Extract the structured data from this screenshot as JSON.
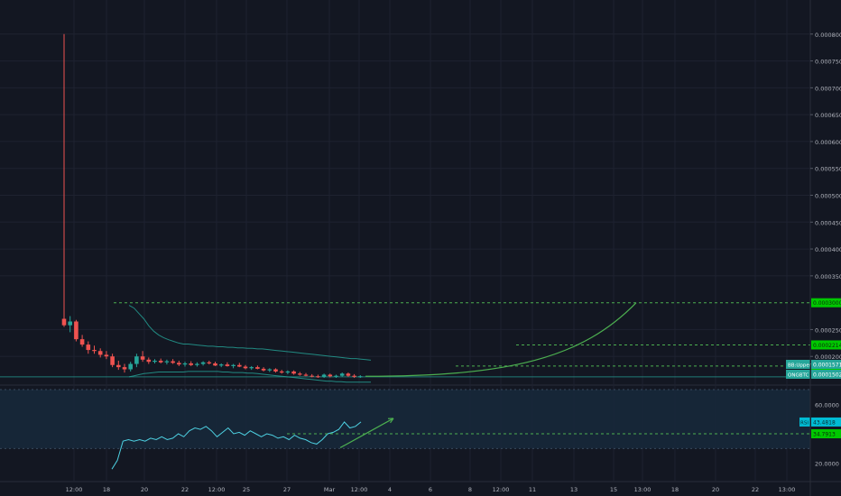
{
  "colors": {
    "background": "#131722",
    "grid": "#1e2230",
    "candle_up": "#26a69a",
    "candle_down": "#ef5350",
    "bollinger": "#26a69a",
    "projection": "#4caf50",
    "level_line": "#4caf50",
    "level_label_bg": "#00c800",
    "tag_bg": "#26a69a",
    "rsi_line": "#4dd0e1",
    "rsi_band": "#17283a",
    "rsi_tag_bg": "#00bcd4",
    "axis_text": "#b2b5be"
  },
  "chart_data": [
    {
      "type": "candlestick",
      "title": "",
      "ylim": [
        0.00015,
        0.00085
      ],
      "y_ticks": [
        "0.00080000",
        "0.00075000",
        "0.00070000",
        "0.00065000",
        "0.00060000",
        "0.00055000",
        "0.00050000",
        "0.00045000",
        "0.00040000",
        "0.00035000",
        "0.00025000",
        "0.00020000"
      ],
      "y_tick_values": [
        0.0008,
        0.00075,
        0.0007,
        0.00065,
        0.0006,
        0.00055,
        0.0005,
        0.00045,
        0.0004,
        0.00035,
        0.00025,
        0.0002
      ],
      "x_ticks": [
        "12:00",
        "18",
        "20",
        "22",
        "12:00",
        "25",
        "27",
        "Mar",
        "12:00",
        "4",
        "6",
        "8",
        "12:00",
        "11",
        "13",
        "15",
        "13:00",
        "18",
        "20",
        "22",
        "13:00"
      ],
      "candles": [
        {
          "o": 0.00027,
          "h": 0.0008,
          "l": 0.000255,
          "c": 0.000258
        },
        {
          "o": 0.000258,
          "h": 0.000275,
          "l": 0.000245,
          "c": 0.000265
        },
        {
          "o": 0.000265,
          "h": 0.000268,
          "l": 0.000228,
          "c": 0.000232
        },
        {
          "o": 0.000232,
          "h": 0.00024,
          "l": 0.000218,
          "c": 0.000222
        },
        {
          "o": 0.000222,
          "h": 0.000228,
          "l": 0.000205,
          "c": 0.000212
        },
        {
          "o": 0.000212,
          "h": 0.00022,
          "l": 0.000205,
          "c": 0.00021
        },
        {
          "o": 0.00021,
          "h": 0.000215,
          "l": 0.000198,
          "c": 0.000203
        },
        {
          "o": 0.000203,
          "h": 0.00021,
          "l": 0.000195,
          "c": 0.0002
        },
        {
          "o": 0.0002,
          "h": 0.000205,
          "l": 0.00018,
          "c": 0.000184
        },
        {
          "o": 0.000184,
          "h": 0.000192,
          "l": 0.000175,
          "c": 0.00018
        },
        {
          "o": 0.00018,
          "h": 0.000186,
          "l": 0.00017,
          "c": 0.000176
        },
        {
          "o": 0.000176,
          "h": 0.00019,
          "l": 0.000172,
          "c": 0.000186
        },
        {
          "o": 0.000186,
          "h": 0.000205,
          "l": 0.00018,
          "c": 0.0002
        },
        {
          "o": 0.0002,
          "h": 0.00021,
          "l": 0.00019,
          "c": 0.000194
        },
        {
          "o": 0.000194,
          "h": 0.000198,
          "l": 0.000186,
          "c": 0.00019
        },
        {
          "o": 0.00019,
          "h": 0.000195,
          "l": 0.000187,
          "c": 0.000192
        },
        {
          "o": 0.000192,
          "h": 0.000196,
          "l": 0.000187,
          "c": 0.000189
        },
        {
          "o": 0.000189,
          "h": 0.000194,
          "l": 0.000185,
          "c": 0.000191
        },
        {
          "o": 0.000191,
          "h": 0.000195,
          "l": 0.000186,
          "c": 0.000188
        },
        {
          "o": 0.000188,
          "h": 0.000192,
          "l": 0.000182,
          "c": 0.000185
        },
        {
          "o": 0.000185,
          "h": 0.00019,
          "l": 0.000181,
          "c": 0.000187
        },
        {
          "o": 0.000187,
          "h": 0.000191,
          "l": 0.000182,
          "c": 0.000184
        },
        {
          "o": 0.000184,
          "h": 0.000189,
          "l": 0.000181,
          "c": 0.000186
        },
        {
          "o": 0.000186,
          "h": 0.000191,
          "l": 0.000183,
          "c": 0.000189
        },
        {
          "o": 0.000189,
          "h": 0.000192,
          "l": 0.000185,
          "c": 0.000187
        },
        {
          "o": 0.000187,
          "h": 0.00019,
          "l": 0.000182,
          "c": 0.000183
        },
        {
          "o": 0.000183,
          "h": 0.000187,
          "l": 0.00018,
          "c": 0.000185
        },
        {
          "o": 0.000185,
          "h": 0.000189,
          "l": 0.000181,
          "c": 0.000182
        },
        {
          "o": 0.000182,
          "h": 0.000186,
          "l": 0.000178,
          "c": 0.000184
        },
        {
          "o": 0.000184,
          "h": 0.000188,
          "l": 0.00018,
          "c": 0.000181
        },
        {
          "o": 0.000181,
          "h": 0.000184,
          "l": 0.000176,
          "c": 0.000178
        },
        {
          "o": 0.000178,
          "h": 0.000182,
          "l": 0.000175,
          "c": 0.00018
        },
        {
          "o": 0.00018,
          "h": 0.000183,
          "l": 0.000176,
          "c": 0.000177
        },
        {
          "o": 0.000177,
          "h": 0.00018,
          "l": 0.000172,
          "c": 0.000174
        },
        {
          "o": 0.000174,
          "h": 0.000178,
          "l": 0.000171,
          "c": 0.000176
        },
        {
          "o": 0.000176,
          "h": 0.000178,
          "l": 0.00017,
          "c": 0.000172
        },
        {
          "o": 0.000172,
          "h": 0.000175,
          "l": 0.000168,
          "c": 0.00017
        },
        {
          "o": 0.00017,
          "h": 0.000174,
          "l": 0.000167,
          "c": 0.000172
        },
        {
          "o": 0.000172,
          "h": 0.000174,
          "l": 0.000166,
          "c": 0.000168
        },
        {
          "o": 0.000168,
          "h": 0.000171,
          "l": 0.000164,
          "c": 0.000166
        },
        {
          "o": 0.000166,
          "h": 0.000169,
          "l": 0.000163,
          "c": 0.000164
        },
        {
          "o": 0.000164,
          "h": 0.000167,
          "l": 0.000161,
          "c": 0.000163
        },
        {
          "o": 0.000163,
          "h": 0.000166,
          "l": 0.00016,
          "c": 0.000162
        },
        {
          "o": 0.000162,
          "h": 0.000168,
          "l": 0.00016,
          "c": 0.000166
        },
        {
          "o": 0.000166,
          "h": 0.000168,
          "l": 0.000161,
          "c": 0.000163
        },
        {
          "o": 0.000163,
          "h": 0.000166,
          "l": 0.00016,
          "c": 0.000164
        },
        {
          "o": 0.000164,
          "h": 0.00017,
          "l": 0.000162,
          "c": 0.000168
        },
        {
          "o": 0.000168,
          "h": 0.00017,
          "l": 0.000162,
          "c": 0.000164
        },
        {
          "o": 0.000164,
          "h": 0.000167,
          "l": 0.00016,
          "c": 0.000162
        },
        {
          "o": 0.000162,
          "h": 0.000165,
          "l": 0.00016,
          "c": 0.000163
        }
      ],
      "bollinger_upper": [
        0.00027,
        0.000265,
        0.000255,
        0.000245,
        0.000232,
        0.000222,
        0.000215,
        0.00021,
        0.000206,
        0.000203,
        0.0002,
        0.000198,
        0.000198,
        0.000197,
        0.000196,
        0.000195,
        0.000194,
        0.000194,
        0.000193,
        0.000193,
        0.000192,
        0.000192,
        0.000191,
        0.000191,
        0.00019,
        0.00019,
        0.000189,
        0.000189,
        0.000188,
        0.000187,
        0.000186,
        0.000185,
        0.000184,
        0.000183,
        0.000182,
        0.000181,
        0.00018,
        0.000179,
        0.000178,
        0.000177,
        0.000176,
        0.000175,
        0.000174,
        0.000173,
        0.000172,
        0.000171,
        0.000171,
        0.00017,
        0.000169,
        0.000168
      ],
      "bollinger_lower": [
        0.000168,
        0.00017,
        0.000172,
        0.000174,
        0.000175,
        0.000176,
        0.000177,
        0.000177,
        0.000177,
        0.000177,
        0.000177,
        0.000177,
        0.000178,
        0.000178,
        0.000178,
        0.000178,
        0.000178,
        0.000178,
        0.000178,
        0.000177,
        0.000177,
        0.000176,
        0.000176,
        0.000176,
        0.000175,
        0.000175,
        0.000174,
        0.000173,
        0.000172,
        0.000171,
        0.00017,
        0.000169,
        0.000168,
        0.000167,
        0.000166,
        0.000165,
        0.000164,
        0.000163,
        0.000162,
        0.000161,
        0.00016,
        0.00016,
        0.000159,
        0.000159,
        0.000158,
        0.000158,
        0.000158,
        0.000158,
        0.000158,
        0.000158
      ],
      "levels": [
        {
          "value": 0.0002999,
          "label": "0.00030000"
        },
        {
          "value": 0.0002214,
          "label": "0.00022140"
        },
        {
          "value": 0.0001821,
          "label": "0.00018217"
        }
      ],
      "projection_curve": [
        [
          0.000163,
          0.0
        ],
        [
          0.0001821,
          0.45
        ],
        [
          0.0002214,
          0.75
        ],
        [
          0.0002999,
          1.0
        ]
      ],
      "tags": [
        {
          "name": "BB:Upper",
          "value": "0.00015710"
        },
        {
          "name": "ONGBTC",
          "value": "0.00015024"
        }
      ]
    },
    {
      "type": "line",
      "title": "",
      "series_name": "RSI",
      "ylim": [
        10,
        70
      ],
      "y_ticks": [
        "60.0000",
        "20.0000"
      ],
      "y_tick_values": [
        60,
        20
      ],
      "band": [
        30,
        70
      ],
      "values": [
        16,
        22,
        35,
        36,
        35,
        36,
        35,
        37,
        36,
        38,
        36,
        37,
        40,
        38,
        42,
        44,
        43,
        45,
        42,
        38,
        41,
        44,
        40,
        41,
        39,
        42,
        40,
        38,
        40,
        39,
        37,
        38,
        36,
        39,
        37,
        36,
        34,
        33,
        36,
        40,
        41,
        43,
        48,
        44,
        45,
        48
      ],
      "trend_arrow": [
        [
          39,
          33
        ],
        [
          52,
          48
        ]
      ],
      "levels": [
        {
          "value": 40,
          "label": "34.7913"
        }
      ],
      "tag": {
        "name": "RSI",
        "value": "43.4818"
      }
    }
  ]
}
